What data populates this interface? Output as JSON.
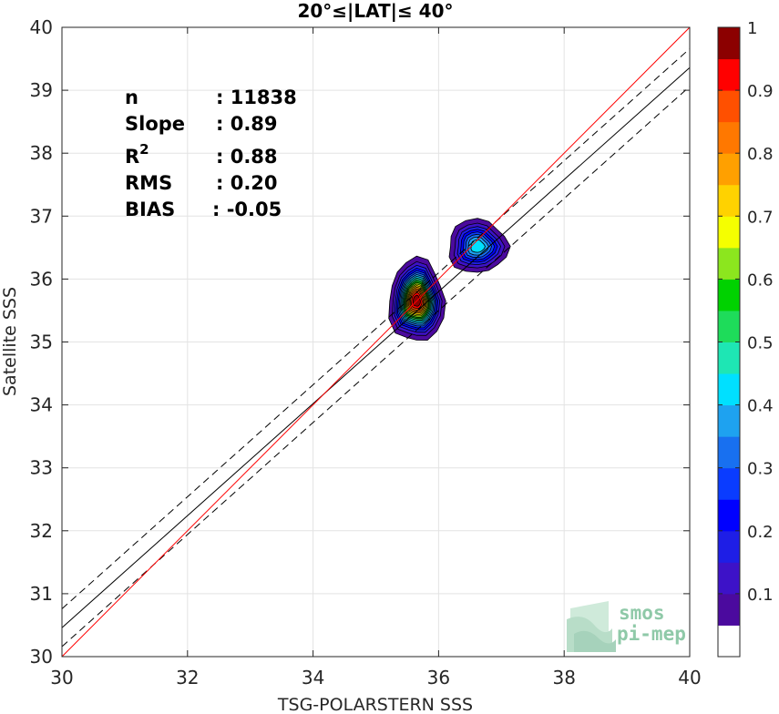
{
  "chart_data": {
    "type": "scatter",
    "subtype": "density-contour",
    "title": "20°≤|LAT|≤ 40°",
    "xlabel": "TSG-POLARSTERN SSS",
    "ylabel": "Satellite SSS",
    "xlim": [
      30,
      40
    ],
    "ylim": [
      30,
      40
    ],
    "xticks": [
      "30",
      "32",
      "34",
      "36",
      "38",
      "40"
    ],
    "yticks": [
      "30",
      "31",
      "32",
      "33",
      "34",
      "35",
      "36",
      "37",
      "38",
      "39",
      "40"
    ],
    "grid": true,
    "stats": {
      "n_label": "n",
      "n_value": ": 11838",
      "slope_label": "Slope",
      "slope_value": ": 0.89",
      "r2_label": "R",
      "r2_sup": "2",
      "r2_value": ": 0.88",
      "rms_label": "RMS",
      "rms_value": ": 0.20",
      "bias_label": "BIAS",
      "bias_value": ": -0.05"
    },
    "lines": {
      "identity": {
        "color": "#ff0000",
        "x": [
          30,
          40
        ],
        "y": [
          30,
          40
        ]
      },
      "fit": {
        "color": "#000000",
        "slope": 0.89,
        "intercept": 3.76
      },
      "fit_upper": {
        "style": "dashed",
        "slope": 0.89,
        "intercept": 4.06
      },
      "fit_lower": {
        "style": "dashed",
        "slope": 0.89,
        "intercept": 3.46
      }
    },
    "clusters": [
      {
        "x": 35.65,
        "y": 35.65,
        "peak": 1.0,
        "rx": 0.4,
        "ry": 0.6
      },
      {
        "x": 36.62,
        "y": 36.52,
        "peak": 0.45,
        "rx": 0.5,
        "ry": 0.45
      }
    ],
    "colorbar": {
      "ticks": [
        "0.1",
        "0.2",
        "0.3",
        "0.4",
        "0.5",
        "0.6",
        "0.7",
        "0.8",
        "0.9",
        "1"
      ],
      "levels": [
        0,
        0.05,
        0.1,
        0.15,
        0.2,
        0.25,
        0.3,
        0.35,
        0.4,
        0.45,
        0.5,
        0.55,
        0.6,
        0.65,
        0.7,
        0.75,
        0.8,
        0.85,
        0.9,
        0.95,
        1.0
      ],
      "colors": [
        "#ffffff",
        "#4b0a9e",
        "#3d12c8",
        "#1e1ee6",
        "#0000ff",
        "#0a3cff",
        "#1870f0",
        "#1ea2f0",
        "#00e0ff",
        "#1ee6b4",
        "#1edc5a",
        "#00d200",
        "#8ce61e",
        "#f5ff00",
        "#ffd200",
        "#ffa000",
        "#ff7800",
        "#ff5000",
        "#ff0000",
        "#8c0000"
      ]
    }
  },
  "watermark": {
    "line1": "smos",
    "line2": "pi-mep"
  }
}
